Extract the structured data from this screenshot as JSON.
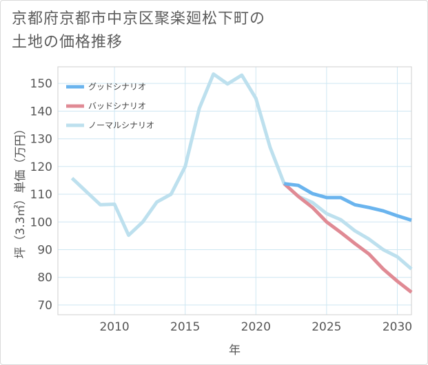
{
  "title_line1": "京都府京都市中京区聚楽廻松下町の",
  "title_line2": "土地の価格推移",
  "chart_data": {
    "type": "line",
    "xlabel": "年",
    "ylabel": "坪（3.3㎡）単価（万円）",
    "xlim": [
      2006,
      2031
    ],
    "ylim": [
      66.5,
      156
    ],
    "xticks": [
      2010,
      2015,
      2020,
      2025,
      2030
    ],
    "yticks": [
      70,
      80,
      90,
      100,
      110,
      120,
      130,
      140,
      150
    ],
    "legend_position": "top-left",
    "series": [
      {
        "name": "グッドシナリオ",
        "color": "#6ab4ee",
        "x": [
          2022,
          2023,
          2024,
          2025,
          2026,
          2027,
          2028,
          2029,
          2030,
          2031
        ],
        "values": [
          113.8,
          113.2,
          110.2,
          108.8,
          108.8,
          106.2,
          105.2,
          104.0,
          102.2,
          100.6
        ]
      },
      {
        "name": "バッドシナリオ",
        "color": "#e08a94",
        "x": [
          2022,
          2023,
          2024,
          2025,
          2026,
          2027,
          2028,
          2029,
          2030,
          2031
        ],
        "values": [
          113.8,
          109.2,
          105.2,
          100.0,
          96.2,
          92.2,
          88.4,
          83.0,
          78.6,
          74.6
        ]
      },
      {
        "name": "ノーマルシナリオ",
        "color": "#bde0ee",
        "x": [
          2007,
          2008,
          2009,
          2010,
          2011,
          2012,
          2013,
          2014,
          2015,
          2016,
          2017,
          2018,
          2019,
          2020,
          2021,
          2022,
          2023,
          2024,
          2025,
          2026,
          2027,
          2028,
          2029,
          2030,
          2031
        ],
        "values": [
          115.8,
          111.0,
          106.2,
          106.4,
          95.2,
          100.0,
          107.2,
          110.0,
          120.0,
          141.0,
          153.4,
          149.8,
          153.0,
          144.6,
          127.0,
          113.8,
          109.2,
          107.0,
          103.0,
          100.8,
          96.8,
          93.8,
          90.0,
          87.4,
          83.0
        ]
      }
    ]
  }
}
